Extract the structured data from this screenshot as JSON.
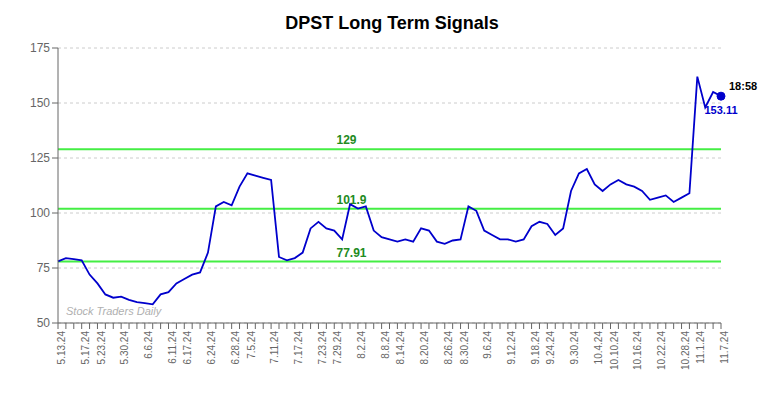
{
  "chart_data": {
    "type": "line",
    "title": "DPST Long Term Signals",
    "categories": [
      "5.13.24",
      null,
      null,
      "5.17.24",
      null,
      "5.23.24",
      null,
      null,
      "5.30.24",
      null,
      null,
      "6.6.24",
      null,
      null,
      "6.11.24",
      null,
      "6.17.24",
      null,
      null,
      "6.24.24",
      null,
      null,
      "6.28.24",
      null,
      "7.5.24",
      null,
      null,
      "7.11.24",
      null,
      null,
      "7.17.24",
      null,
      null,
      "7.23.24",
      null,
      "7.29.24",
      null,
      null,
      "8.2.24",
      null,
      null,
      "8.8.24",
      null,
      "8.14.24",
      null,
      null,
      "8.20.24",
      null,
      null,
      "8.26.24",
      null,
      "8.30.24",
      null,
      null,
      "9.6.24",
      null,
      null,
      "9.12.24",
      null,
      null,
      "9.18.24",
      null,
      "9.24.24",
      null,
      null,
      "9.30.24",
      null,
      null,
      "10.4.24",
      null,
      "10.10.24",
      null,
      null,
      "10.16.24",
      null,
      null,
      "10.22.24",
      null,
      null,
      "10.28.24",
      null,
      "11.1.24",
      null,
      null,
      "11.7.24"
    ],
    "values": [
      78.0,
      79.5,
      79.0,
      78.5,
      72.0,
      68.0,
      63.0,
      61.5,
      62.0,
      60.5,
      59.5,
      59.0,
      58.5,
      63.0,
      64.0,
      68.0,
      70.0,
      72.0,
      73.0,
      82.0,
      103.0,
      105.0,
      103.5,
      112.0,
      118.0,
      117.0,
      116.0,
      115.0,
      80.0,
      78.5,
      79.5,
      82.0,
      93.0,
      96.0,
      93.0,
      92.0,
      88.0,
      104.0,
      102.0,
      103.0,
      92.0,
      89.0,
      88.0,
      87.0,
      88.0,
      87.0,
      93.0,
      92.0,
      87.0,
      86.0,
      87.5,
      88.0,
      103.0,
      101.0,
      92.0,
      90.0,
      88.0,
      88.0,
      87.0,
      88.0,
      94.0,
      96.0,
      95.0,
      90.0,
      93.0,
      110.0,
      118.0,
      120.0,
      113.0,
      110.0,
      113.0,
      115.0,
      113.0,
      112.0,
      110.0,
      106.0,
      107.0,
      108.0,
      105.0,
      107.0,
      109.0,
      162.0,
      148.0,
      155.0,
      153.11
    ],
    "color": "#0000cc",
    "ylim": [
      50,
      175
    ],
    "yticks": [
      50,
      75,
      100,
      125,
      150,
      175
    ],
    "grid": true,
    "reference_lines": [
      77.91,
      101.9,
      129
    ],
    "reference_line_color": "#44ee44",
    "reference_label_color": "#228B22",
    "last_point": {
      "time": "18:58",
      "value": 153.11,
      "color": "#0000cc",
      "time_color": "#000000"
    },
    "watermark": "Stock Traders Daily",
    "watermark_color": "#b0b0b0"
  }
}
